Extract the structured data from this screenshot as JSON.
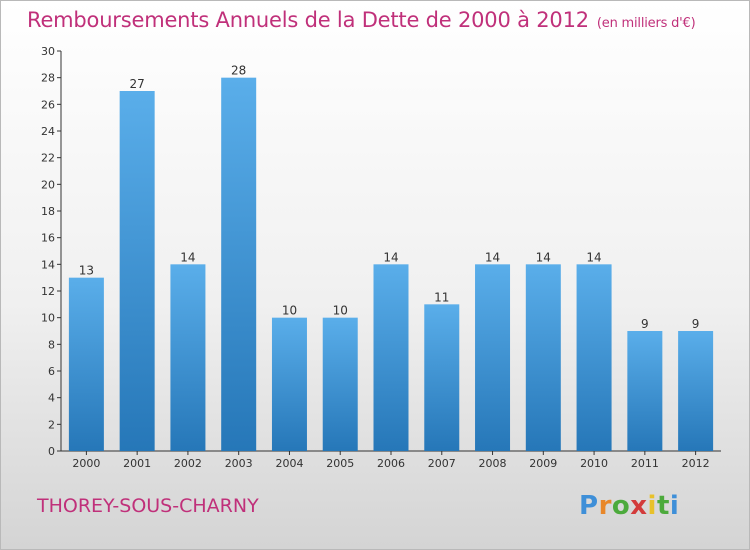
{
  "chart_data": {
    "type": "bar",
    "title": "Remboursements Annuels de la Dette de 2000 à 2012",
    "subtitle": "(en milliers d'€)",
    "categories": [
      "2000",
      "2001",
      "2002",
      "2003",
      "2004",
      "2005",
      "2006",
      "2007",
      "2008",
      "2009",
      "2010",
      "2011",
      "2012"
    ],
    "values": [
      13,
      27,
      14,
      28,
      10,
      10,
      14,
      11,
      14,
      14,
      14,
      9,
      9
    ],
    "ylim": [
      0,
      30
    ],
    "y_ticks": [
      0,
      2,
      4,
      6,
      8,
      10,
      12,
      14,
      16,
      18,
      20,
      22,
      24,
      26,
      28,
      30
    ],
    "grid": false,
    "bar_color_top": "#5aaeea",
    "bar_color_bottom": "#2677b8",
    "xlabel": "",
    "ylabel": ""
  },
  "footer": {
    "commune": "THOREY-SOUS-CHARNY",
    "logo_letters": [
      "P",
      "r",
      "o",
      "x",
      "i",
      "t",
      "i"
    ],
    "logo_colors": [
      "#3e8fd8",
      "#e8872a",
      "#4caa3c",
      "#d33b3b",
      "#e8c12a",
      "#4caa3c",
      "#3e8fd8"
    ]
  },
  "colors": {
    "title": "#c0307a",
    "axis": "#333333"
  }
}
